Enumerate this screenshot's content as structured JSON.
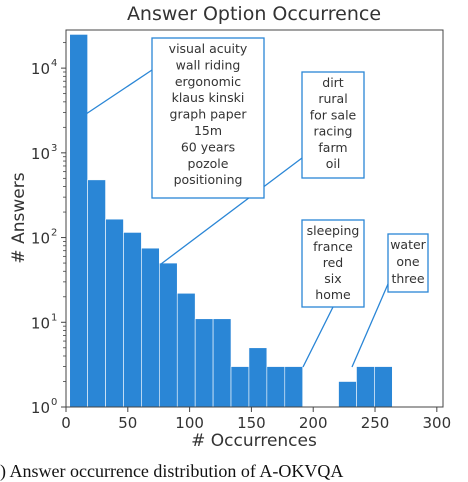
{
  "chart_data": {
    "type": "bar",
    "title": "Answer Option Occurrence",
    "xlabel": "# Occurrences",
    "ylabel": "# Answers",
    "xlim": [
      0,
      305
    ],
    "ylim_log10": [
      0,
      4.45
    ],
    "y_scale": "log",
    "grid": false,
    "color": "#2a86d6",
    "bin_width": 14.5,
    "bins": [
      {
        "x0": 3,
        "value": 25000
      },
      {
        "x0": 17.5,
        "value": 480
      },
      {
        "x0": 32,
        "value": 165
      },
      {
        "x0": 46.5,
        "value": 115
      },
      {
        "x0": 61,
        "value": 75
      },
      {
        "x0": 75.5,
        "value": 50
      },
      {
        "x0": 90,
        "value": 22
      },
      {
        "x0": 104.5,
        "value": 11
      },
      {
        "x0": 119,
        "value": 11
      },
      {
        "x0": 133.5,
        "value": 3
      },
      {
        "x0": 148,
        "value": 5
      },
      {
        "x0": 162.5,
        "value": 3
      },
      {
        "x0": 177,
        "value": 3
      },
      {
        "x0": 191.5,
        "value": 0
      },
      {
        "x0": 206,
        "value": 0
      },
      {
        "x0": 220.5,
        "value": 2
      },
      {
        "x0": 235,
        "value": 3
      },
      {
        "x0": 249.5,
        "value": 3
      }
    ],
    "x_ticks": [
      0,
      50,
      100,
      150,
      200,
      250,
      300
    ],
    "y_ticks": [
      {
        "exp": 0,
        "label": "10",
        "sup": "0"
      },
      {
        "exp": 1,
        "label": "10",
        "sup": "1"
      },
      {
        "exp": 2,
        "label": "10",
        "sup": "2"
      },
      {
        "exp": 3,
        "label": "10",
        "sup": "3"
      },
      {
        "exp": 4,
        "label": "10",
        "sup": "4"
      }
    ],
    "annotations": [
      {
        "lines": [
          "visual acuity",
          "wall riding",
          "ergonomic",
          "klaus kinski",
          "graph paper",
          "15m",
          "60 years",
          "pozole",
          "positioning"
        ]
      },
      {
        "lines": [
          "dirt",
          "rural",
          "for sale",
          "racing",
          "farm",
          "oil"
        ]
      },
      {
        "lines": [
          "sleeping",
          "france",
          "red",
          "six",
          "home"
        ]
      },
      {
        "lines": [
          "water",
          "one",
          "three"
        ]
      }
    ]
  },
  "caption": ") Answer occurrence distribution of A-OKVQA"
}
